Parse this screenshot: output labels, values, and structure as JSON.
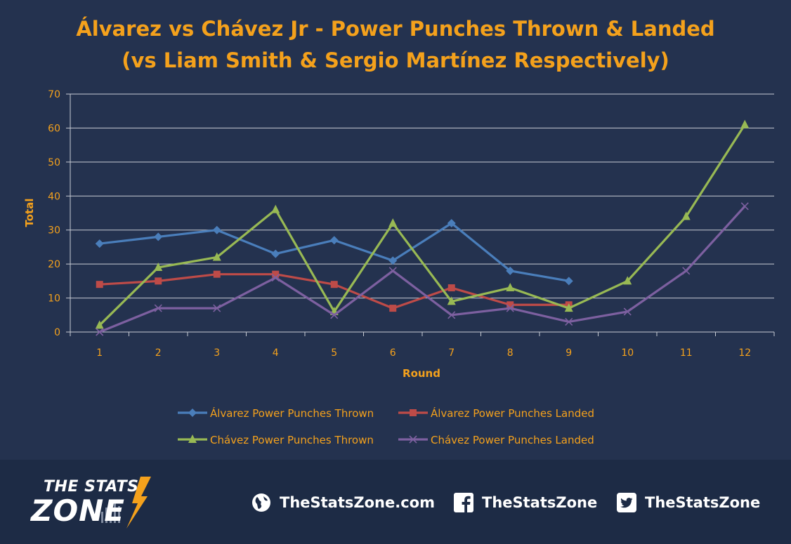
{
  "chart_data": {
    "type": "line",
    "title_line1": "Álvarez vs Chávez Jr - Power Punches Thrown & Landed",
    "title_line2": "(vs Liam Smith & Sergio Martínez Respectively)",
    "xlabel": "Round",
    "ylabel": "Total",
    "categories": [
      "1",
      "2",
      "3",
      "4",
      "5",
      "6",
      "7",
      "8",
      "9",
      "10",
      "11",
      "12"
    ],
    "yticks": [
      "0",
      "10",
      "20",
      "30",
      "40",
      "50",
      "60",
      "70"
    ],
    "ylim": [
      0,
      70
    ],
    "grid": true,
    "legend_position": "bottom",
    "series": [
      {
        "name": "Álvarez Power Punches Thrown",
        "color": "#4a7ebb",
        "marker": "diamond",
        "values": [
          26,
          28,
          30,
          23,
          27,
          21,
          32,
          18,
          15,
          null,
          null,
          null
        ]
      },
      {
        "name": "Álvarez Power Punches Landed",
        "color": "#be4b48",
        "marker": "square",
        "values": [
          14,
          15,
          17,
          17,
          14,
          7,
          13,
          8,
          8,
          null,
          null,
          null
        ]
      },
      {
        "name": "Chávez Power Punches Thrown",
        "color": "#98b954",
        "marker": "triangle",
        "values": [
          2,
          19,
          22,
          36,
          6,
          32,
          9,
          13,
          7,
          15,
          34,
          61
        ]
      },
      {
        "name": "Chávez Power Punches Landed",
        "color": "#7d60a0",
        "marker": "x",
        "values": [
          0,
          7,
          7,
          16,
          5,
          18,
          5,
          7,
          3,
          6,
          18,
          37
        ]
      }
    ]
  },
  "colors": {
    "text_accent": "#f4a11c",
    "grid": "#ffffff",
    "background": "#24324f",
    "footer": "#1d2b45"
  },
  "footer": {
    "logo_top": "THE STATS",
    "logo_bottom": "ZONE",
    "website": "TheStatsZone.com",
    "facebook": "TheStatsZone",
    "twitter": "TheStatsZone",
    "website_icon": "globe-icon",
    "facebook_icon": "facebook-icon",
    "twitter_icon": "twitter-icon"
  }
}
